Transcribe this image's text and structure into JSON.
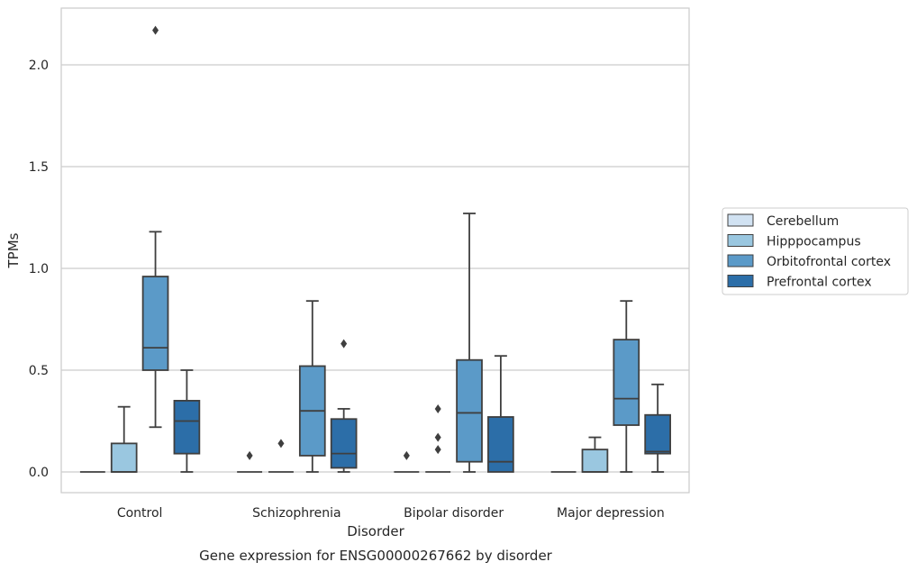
{
  "chart_data": {
    "type": "box",
    "title": "",
    "caption": "Gene expression for ENSG00000267662 by disorder",
    "xlabel": "Disorder",
    "ylabel": "TPMs",
    "ylim": [
      -0.1,
      2.28
    ],
    "yticks": [
      0.0,
      0.5,
      1.0,
      1.5,
      2.0
    ],
    "ytick_labels": [
      "0.0",
      "0.5",
      "1.0",
      "1.5",
      "2.0"
    ],
    "grid": "horizontal",
    "legend_position": "right",
    "categories": [
      "Control",
      "Schizophrenia",
      "Bipolar disorder",
      "Major depression"
    ],
    "series": [
      {
        "name": "Cerebellum",
        "color": "#d1e2f2",
        "boxes": [
          {
            "whislo": 0,
            "q1": 0,
            "med": 0,
            "q3": 0,
            "whishi": 0,
            "fliers": []
          },
          {
            "whislo": 0,
            "q1": 0,
            "med": 0,
            "q3": 0,
            "whishi": 0,
            "fliers": [
              0.08
            ]
          },
          {
            "whislo": 0,
            "q1": 0,
            "med": 0,
            "q3": 0,
            "whishi": 0,
            "fliers": [
              0.08
            ]
          },
          {
            "whislo": 0,
            "q1": 0,
            "med": 0,
            "q3": 0,
            "whishi": 0,
            "fliers": []
          }
        ]
      },
      {
        "name": "Hipppocampus",
        "color": "#9ac7e0",
        "boxes": [
          {
            "whislo": 0,
            "q1": 0,
            "med": 0,
            "q3": 0.14,
            "whishi": 0.32,
            "fliers": []
          },
          {
            "whislo": 0,
            "q1": 0,
            "med": 0,
            "q3": 0,
            "whishi": 0,
            "fliers": [
              0.14
            ]
          },
          {
            "whislo": 0,
            "q1": 0,
            "med": 0,
            "q3": 0,
            "whishi": 0,
            "fliers": [
              0.11,
              0.17,
              0.31
            ]
          },
          {
            "whislo": 0,
            "q1": 0,
            "med": 0,
            "q3": 0.11,
            "whishi": 0.17,
            "fliers": []
          }
        ]
      },
      {
        "name": "Orbitofrontal cortex",
        "color": "#5b9ac8",
        "boxes": [
          {
            "whislo": 0.22,
            "q1": 0.5,
            "med": 0.61,
            "q3": 0.96,
            "whishi": 1.18,
            "fliers": [
              2.17
            ]
          },
          {
            "whislo": 0,
            "q1": 0.08,
            "med": 0.3,
            "q3": 0.52,
            "whishi": 0.84,
            "fliers": []
          },
          {
            "whislo": 0,
            "q1": 0.05,
            "med": 0.29,
            "q3": 0.55,
            "whishi": 1.27,
            "fliers": []
          },
          {
            "whislo": 0,
            "q1": 0.23,
            "med": 0.36,
            "q3": 0.65,
            "whishi": 0.84,
            "fliers": []
          }
        ]
      },
      {
        "name": "Prefrontal cortex",
        "color": "#2c6ea8",
        "boxes": [
          {
            "whislo": 0,
            "q1": 0.09,
            "med": 0.25,
            "q3": 0.35,
            "whishi": 0.5,
            "fliers": []
          },
          {
            "whislo": 0,
            "q1": 0.02,
            "med": 0.09,
            "q3": 0.26,
            "whishi": 0.31,
            "fliers": [
              0.63
            ]
          },
          {
            "whislo": 0,
            "q1": 0,
            "med": 0.05,
            "q3": 0.27,
            "whishi": 0.57,
            "fliers": []
          },
          {
            "whislo": 0,
            "q1": 0.09,
            "med": 0.1,
            "q3": 0.28,
            "whishi": 0.43,
            "fliers": []
          }
        ]
      }
    ]
  }
}
